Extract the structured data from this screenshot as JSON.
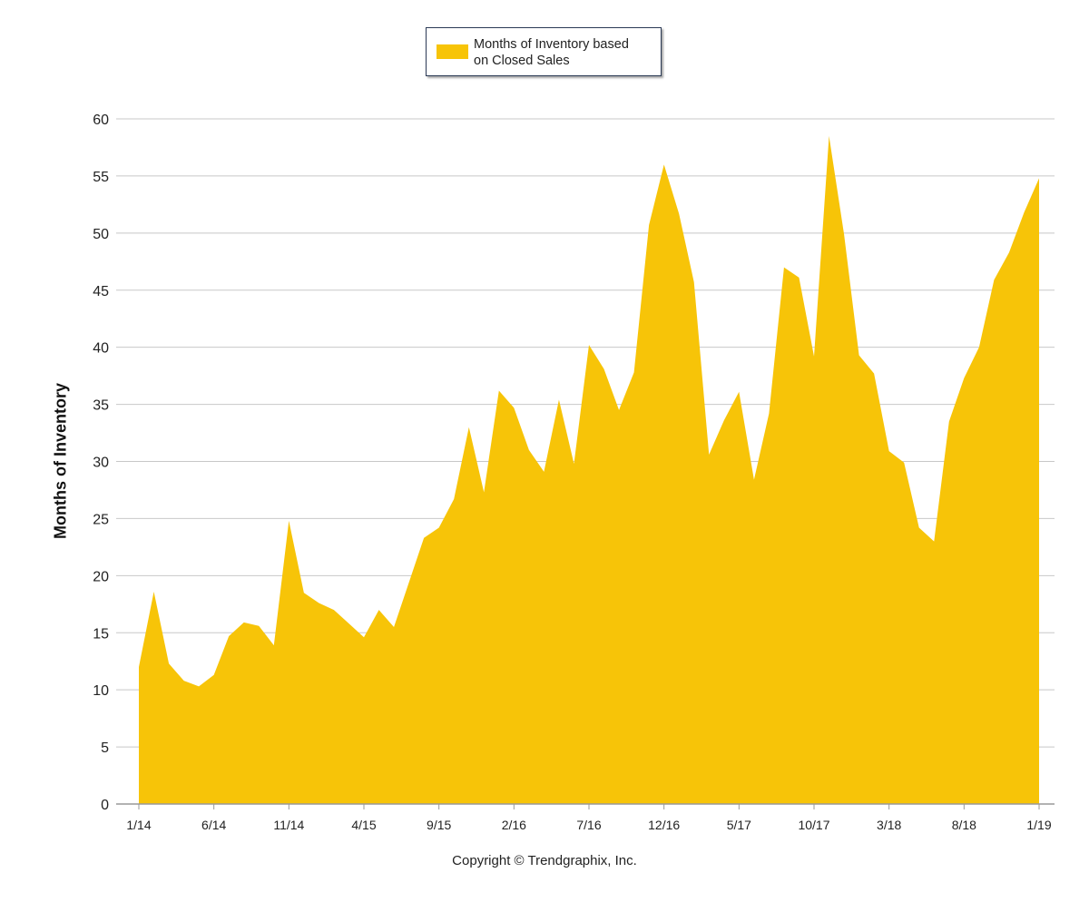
{
  "colors": {
    "area": "#F7C408",
    "grid": "#c8c8c8",
    "axis": "#999999",
    "legend_border": "#2b3a55"
  },
  "legend": {
    "line1": "Months of Inventory based",
    "line2": "on Closed Sales"
  },
  "copyright": "Copyright © Trendgraphix, Inc.",
  "chart_data": {
    "type": "area",
    "title": "",
    "xlabel": "",
    "ylabel": "Months of Inventory",
    "legend_position": "top-center",
    "grid": true,
    "ylim": [
      0,
      60
    ],
    "yticks": [
      0,
      5,
      10,
      15,
      20,
      25,
      30,
      35,
      40,
      45,
      50,
      55,
      60
    ],
    "x_tick_labels": [
      {
        "index": 0,
        "label": "1/14"
      },
      {
        "index": 5,
        "label": "6/14"
      },
      {
        "index": 10,
        "label": "11/14"
      },
      {
        "index": 15,
        "label": "4/15"
      },
      {
        "index": 20,
        "label": "9/15"
      },
      {
        "index": 25,
        "label": "2/16"
      },
      {
        "index": 30,
        "label": "7/16"
      },
      {
        "index": 35,
        "label": "12/16"
      },
      {
        "index": 40,
        "label": "5/17"
      },
      {
        "index": 45,
        "label": "10/17"
      },
      {
        "index": 50,
        "label": "3/18"
      },
      {
        "index": 55,
        "label": "8/18"
      },
      {
        "index": 60,
        "label": "1/19"
      }
    ],
    "series": [
      {
        "name": "Months of Inventory based on Closed Sales",
        "values": [
          12.0,
          18.6,
          12.3,
          10.8,
          10.3,
          11.3,
          14.7,
          15.9,
          15.6,
          13.9,
          24.8,
          18.5,
          17.6,
          17.0,
          15.8,
          14.6,
          17.0,
          15.5,
          19.4,
          23.3,
          24.2,
          26.7,
          33.0,
          27.3,
          36.2,
          34.7,
          31.0,
          29.1,
          35.4,
          29.8,
          40.2,
          38.1,
          34.5,
          37.8,
          50.7,
          56.0,
          51.7,
          45.7,
          30.6,
          33.6,
          36.1,
          28.4,
          34.2,
          47.0,
          46.1,
          39.2,
          58.5,
          49.9,
          39.3,
          37.7,
          30.9,
          29.9,
          24.2,
          23.0,
          33.5,
          37.3,
          40.0,
          45.9,
          48.3,
          51.8,
          54.8
        ]
      }
    ]
  }
}
